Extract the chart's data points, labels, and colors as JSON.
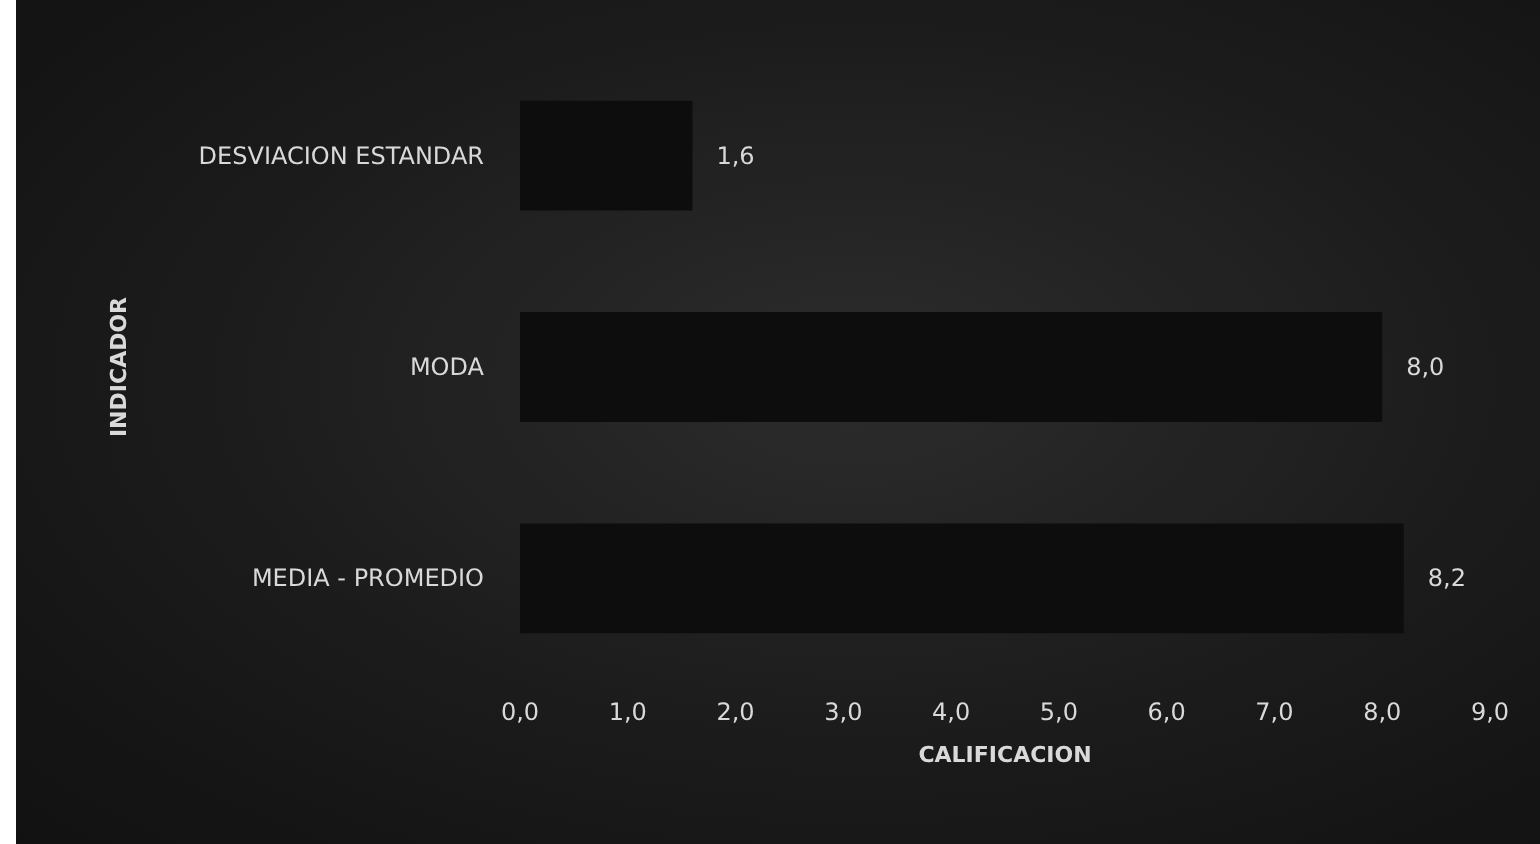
{
  "chart_data": {
    "type": "bar",
    "orientation": "horizontal",
    "xlabel": "CALIFICACION",
    "ylabel": "INDICADOR",
    "categories": [
      "DESVIACION ESTANDAR",
      "MODA",
      "MEDIA - PROMEDIO"
    ],
    "values": [
      1.6,
      8.0,
      8.2
    ],
    "value_labels": [
      "1,6",
      "8,0",
      "8,2"
    ],
    "color": "#0d0d0d",
    "xlim": [
      0,
      9
    ],
    "xticks": [
      {
        "value": 0,
        "label": "0,0"
      },
      {
        "value": 1,
        "label": "1,0"
      },
      {
        "value": 2,
        "label": "2,0"
      },
      {
        "value": 3,
        "label": "3,0"
      },
      {
        "value": 4,
        "label": "4,0"
      },
      {
        "value": 5,
        "label": "5,0"
      },
      {
        "value": 6,
        "label": "6,0"
      },
      {
        "value": 7,
        "label": "7,0"
      },
      {
        "value": 8,
        "label": "8,0"
      },
      {
        "value": 9,
        "label": "9,0"
      }
    ],
    "grid": false
  }
}
